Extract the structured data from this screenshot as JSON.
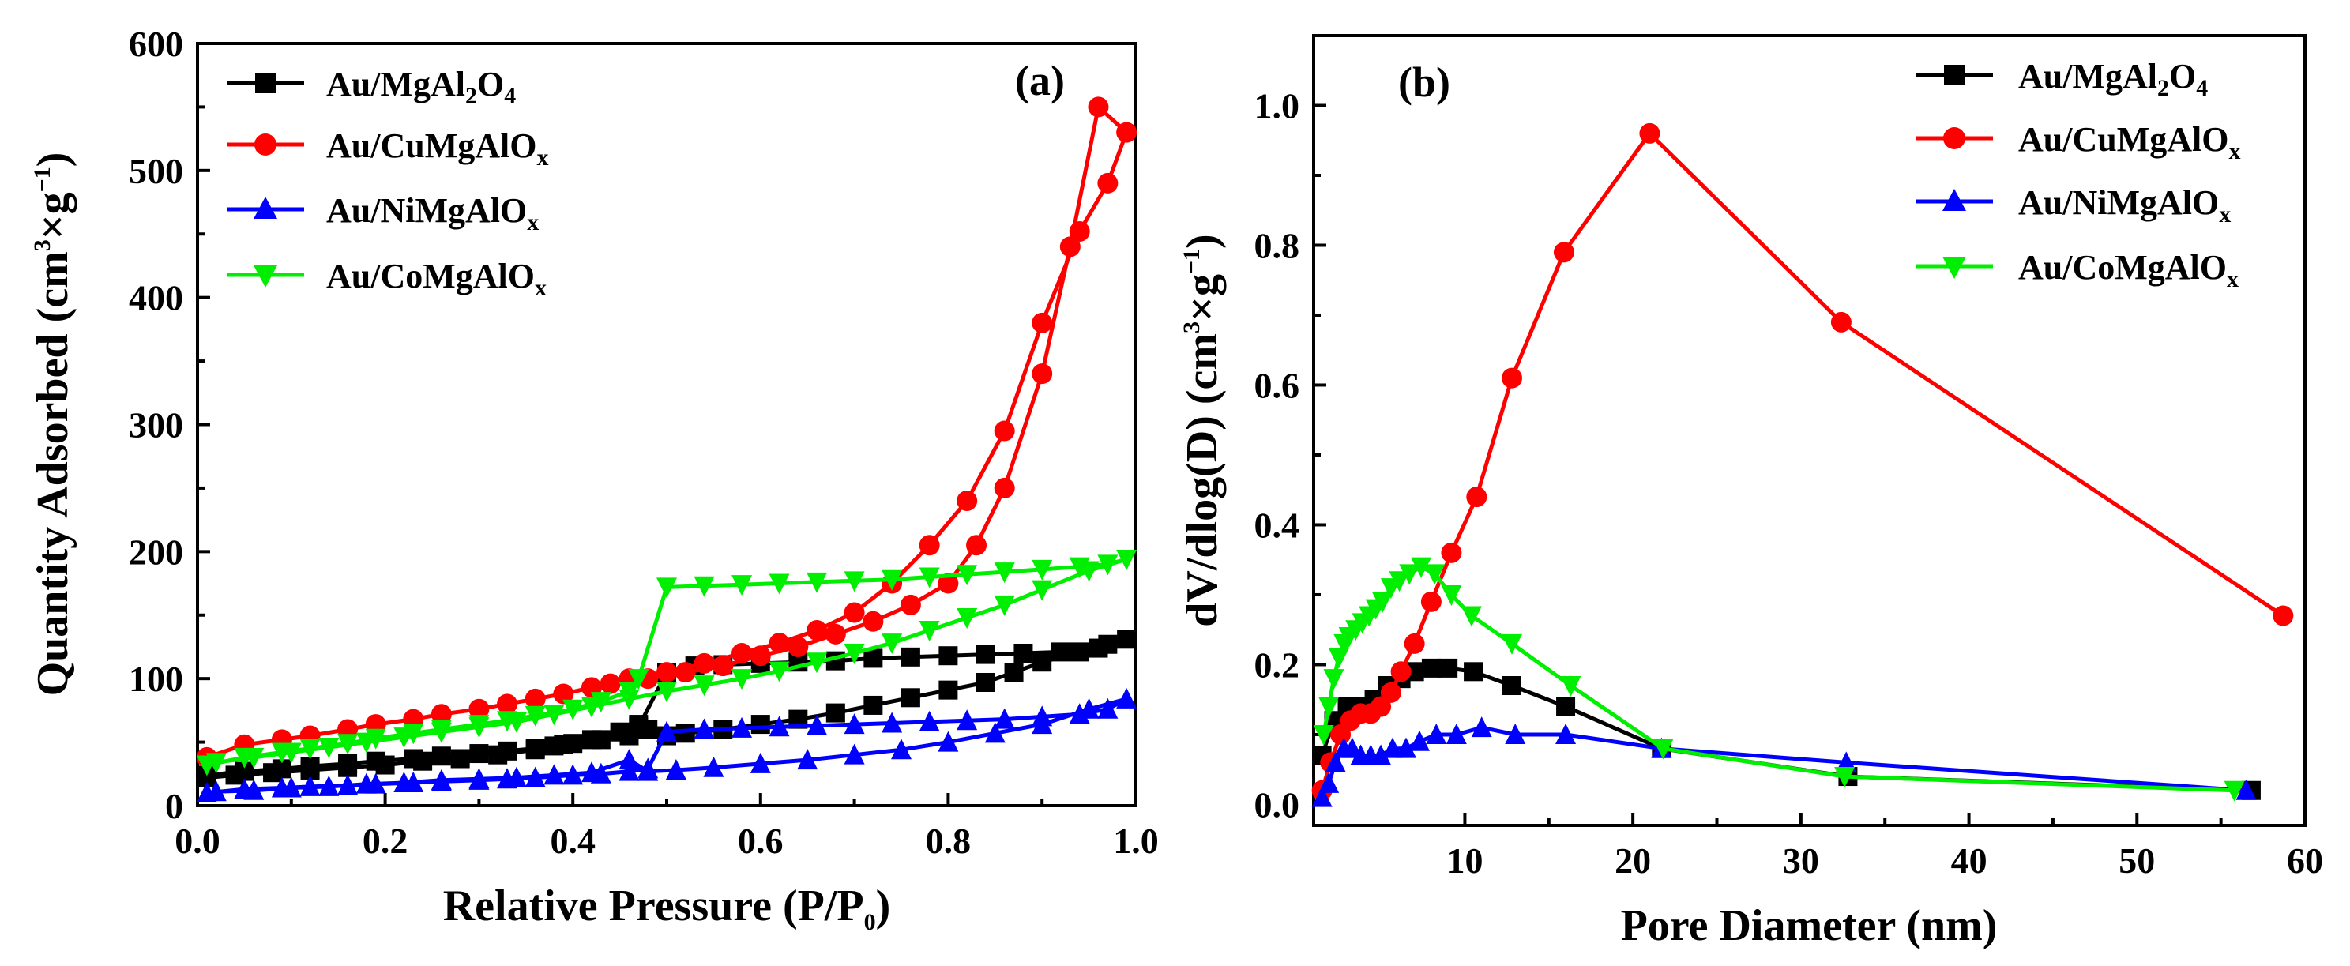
{
  "chart_data": [
    {
      "type": "line",
      "panel_label": "(a)",
      "xlabel": {
        "main": "Relative Pressure (P/P",
        "sub": "0",
        "end": ")"
      },
      "ylabel": {
        "main": "Quantity Adsorbed (cm",
        "sup1": "3",
        "mid": "×g",
        "sup2": "−1",
        "end": ")"
      },
      "xlim": [
        0.0,
        1.0
      ],
      "ylim": [
        0,
        600
      ],
      "xticks": [
        "0.0",
        "0.2",
        "0.4",
        "0.6",
        "0.8",
        "1.0"
      ],
      "yticks": [
        "0",
        "100",
        "200",
        "300",
        "400",
        "500",
        "600"
      ],
      "legend": [
        {
          "base": "Au/MgAl",
          "sub1": "2",
          "mid": "O",
          "sub2": "4"
        },
        {
          "base": "Au/CuMgAlO",
          "sub1": "x"
        },
        {
          "base": "Au/NiMgAlO",
          "sub1": "x"
        },
        {
          "base": "Au/CoMgAlO",
          "sub1": "x"
        }
      ],
      "series": [
        {
          "name": "Au/MgAl2O4",
          "color": "#000000",
          "marker": "square",
          "x": [
            0.01,
            0.05,
            0.09,
            0.12,
            0.16,
            0.19,
            0.23,
            0.26,
            0.3,
            0.33,
            0.36,
            0.38,
            0.4,
            0.43,
            0.46,
            0.47,
            0.5,
            0.53,
            0.56,
            0.6,
            0.64,
            0.68,
            0.72,
            0.76,
            0.8,
            0.84,
            0.88,
            0.92,
            0.96,
            0.99,
            0.97,
            0.94,
            0.9,
            0.87,
            0.84,
            0.8,
            0.76,
            0.72,
            0.68,
            0.64,
            0.6,
            0.56,
            0.52,
            0.5,
            0.48,
            0.47,
            0.45,
            0.42,
            0.39,
            0.36,
            0.32,
            0.28,
            0.24,
            0.2,
            0.16,
            0.12,
            0.08,
            0.04,
            0.01
          ],
          "y": [
            24,
            27,
            29,
            31,
            33,
            35,
            37,
            39,
            41,
            43,
            45,
            47,
            49,
            52,
            55,
            62,
            105,
            110,
            111,
            112,
            113,
            114,
            116,
            117,
            118,
            119,
            120,
            121,
            124,
            131,
            127,
            121,
            113,
            105,
            97,
            91,
            85,
            79,
            73,
            68,
            64,
            60,
            57,
            55,
            60,
            64,
            58,
            52,
            48,
            44,
            40,
            37,
            35,
            32,
            30,
            28,
            26,
            24,
            22
          ]
        },
        {
          "name": "Au/CuMgAlO",
          "color": "#ff0000",
          "marker": "circle",
          "x": [
            0.01,
            0.05,
            0.09,
            0.12,
            0.16,
            0.19,
            0.23,
            0.26,
            0.3,
            0.33,
            0.36,
            0.39,
            0.42,
            0.46,
            0.5,
            0.54,
            0.58,
            0.62,
            0.66,
            0.7,
            0.74,
            0.78,
            0.82,
            0.86,
            0.9,
            0.94,
            0.97,
            0.99,
            0.96,
            0.93,
            0.9,
            0.86,
            0.83,
            0.8,
            0.76,
            0.72,
            0.68,
            0.64,
            0.6,
            0.56,
            0.52,
            0.48,
            0.44
          ],
          "y": [
            38,
            48,
            52,
            55,
            60,
            64,
            68,
            72,
            76,
            80,
            84,
            88,
            93,
            100,
            105,
            112,
            120,
            128,
            138,
            152,
            175,
            205,
            240,
            295,
            380,
            452,
            490,
            530,
            550,
            440,
            340,
            250,
            205,
            175,
            158,
            145,
            135,
            125,
            118,
            110,
            105,
            100,
            96
          ]
        },
        {
          "name": "Au/NiMgAlO",
          "color": "#0000ff",
          "marker": "triangle-up",
          "x": [
            0.01,
            0.05,
            0.09,
            0.12,
            0.16,
            0.19,
            0.23,
            0.26,
            0.3,
            0.33,
            0.36,
            0.4,
            0.43,
            0.46,
            0.48,
            0.5,
            0.54,
            0.58,
            0.62,
            0.66,
            0.7,
            0.74,
            0.78,
            0.82,
            0.86,
            0.9,
            0.94,
            0.97,
            0.99,
            0.95,
            0.9,
            0.85,
            0.8,
            0.75,
            0.7,
            0.65,
            0.6,
            0.55,
            0.51,
            0.48,
            0.46,
            0.42,
            0.38,
            0.34,
            0.3,
            0.26,
            0.22,
            0.18,
            0.14,
            0.1,
            0.06,
            0.02
          ],
          "y": [
            10,
            13,
            14,
            15,
            16,
            17,
            18,
            19,
            20,
            21,
            22,
            24,
            25,
            27,
            29,
            58,
            60,
            61,
            62,
            63,
            64,
            65,
            66,
            67,
            68,
            70,
            72,
            76,
            84,
            76,
            64,
            57,
            50,
            44,
            40,
            36,
            33,
            30,
            28,
            27,
            36,
            26,
            24,
            22,
            21,
            20,
            18,
            17,
            15,
            14,
            12,
            11
          ]
        },
        {
          "name": "Au/CoMgAlO",
          "color": "#00ee00",
          "marker": "triangle-down",
          "x": [
            0.01,
            0.05,
            0.09,
            0.12,
            0.16,
            0.19,
            0.23,
            0.26,
            0.3,
            0.33,
            0.36,
            0.4,
            0.43,
            0.46,
            0.47,
            0.5,
            0.54,
            0.58,
            0.62,
            0.66,
            0.7,
            0.74,
            0.78,
            0.82,
            0.86,
            0.9,
            0.94,
            0.97,
            0.99,
            0.95,
            0.9,
            0.86,
            0.82,
            0.78,
            0.74,
            0.7,
            0.66,
            0.62,
            0.58,
            0.54,
            0.5,
            0.46,
            0.42,
            0.38,
            0.34,
            0.3,
            0.26,
            0.22,
            0.18,
            0.14,
            0.1,
            0.06,
            0.02
          ],
          "y": [
            32,
            38,
            42,
            45,
            49,
            53,
            57,
            60,
            64,
            67,
            71,
            76,
            82,
            90,
            100,
            172,
            173,
            174,
            175,
            176,
            177,
            178,
            180,
            182,
            184,
            186,
            188,
            190,
            194,
            185,
            170,
            158,
            148,
            138,
            128,
            120,
            113,
            106,
            100,
            95,
            90,
            84,
            78,
            72,
            66,
            62,
            58,
            54,
            50,
            46,
            42,
            38,
            34
          ]
        }
      ]
    },
    {
      "type": "line",
      "panel_label": "(b)",
      "xlabel": {
        "main": "Pore Diameter (nm)"
      },
      "ylabel": {
        "main": "dV/dlog(D) (cm",
        "sup1": "3",
        "mid": "×g",
        "sup2": "−1",
        "end": ")"
      },
      "xlim": [
        1.0,
        60.0
      ],
      "ylim": [
        -0.03,
        1.1
      ],
      "xticks": [
        "10",
        "20",
        "30",
        "40",
        "50",
        "60"
      ],
      "yticks": [
        "0.0",
        "0.2",
        "0.4",
        "0.6",
        "0.8",
        "1.0"
      ],
      "legend": [
        {
          "base": "Au/MgAl",
          "sub1": "2",
          "mid": "O",
          "sub2": "4"
        },
        {
          "base": "Au/CuMgAlO",
          "sub1": "x"
        },
        {
          "base": "Au/NiMgAlO",
          "sub1": "x"
        },
        {
          "base": "Au/CoMgAlO",
          "sub1": "x"
        }
      ],
      "series": [
        {
          "name": "Au/MgAl2O4",
          "color": "#000000",
          "marker": "square",
          "x": [
            1.5,
            2.2,
            3.0,
            3.8,
            4.6,
            5.4,
            6.2,
            7.0,
            8.0,
            9.0,
            10.5,
            12.8,
            16.0,
            21.7,
            32.8,
            56.8
          ],
          "y": [
            0.07,
            0.12,
            0.14,
            0.14,
            0.15,
            0.17,
            0.18,
            0.19,
            0.195,
            0.195,
            0.19,
            0.17,
            0.14,
            0.08,
            0.04,
            0.02
          ]
        },
        {
          "name": "Au/CuMgAlO",
          "color": "#ff0000",
          "marker": "circle",
          "x": [
            1.5,
            2.0,
            2.6,
            3.2,
            3.8,
            4.4,
            5.0,
            5.6,
            6.2,
            7.0,
            8.0,
            9.2,
            10.7,
            12.8,
            15.9,
            21.0,
            32.4,
            58.7
          ],
          "y": [
            0.02,
            0.06,
            0.1,
            0.12,
            0.13,
            0.13,
            0.14,
            0.16,
            0.19,
            0.23,
            0.29,
            0.36,
            0.44,
            0.61,
            0.79,
            0.96,
            0.69,
            0.27
          ]
        },
        {
          "name": "Au/NiMgAlO",
          "color": "#0000ff",
          "marker": "triangle-up",
          "x": [
            1.5,
            1.9,
            2.3,
            2.8,
            3.3,
            3.8,
            4.4,
            5.0,
            5.7,
            6.5,
            7.3,
            8.3,
            9.5,
            11.0,
            13.0,
            16.0,
            21.7,
            32.7,
            56.5
          ],
          "y": [
            0.01,
            0.03,
            0.06,
            0.08,
            0.08,
            0.07,
            0.07,
            0.07,
            0.08,
            0.08,
            0.09,
            0.1,
            0.1,
            0.11,
            0.1,
            0.1,
            0.08,
            0.06,
            0.02
          ]
        },
        {
          "name": "Au/CoMgAlO",
          "color": "#00ee00",
          "marker": "triangle-down",
          "x": [
            1.6,
            1.9,
            2.2,
            2.5,
            2.8,
            3.1,
            3.5,
            3.9,
            4.3,
            4.7,
            5.1,
            5.6,
            6.1,
            6.7,
            7.4,
            8.2,
            9.2,
            10.4,
            12.8,
            16.3,
            21.8,
            32.6,
            55.8
          ],
          "y": [
            0.1,
            0.14,
            0.18,
            0.21,
            0.23,
            0.24,
            0.25,
            0.26,
            0.27,
            0.28,
            0.29,
            0.31,
            0.32,
            0.33,
            0.34,
            0.33,
            0.3,
            0.27,
            0.23,
            0.17,
            0.08,
            0.04,
            0.02
          ]
        }
      ]
    }
  ]
}
